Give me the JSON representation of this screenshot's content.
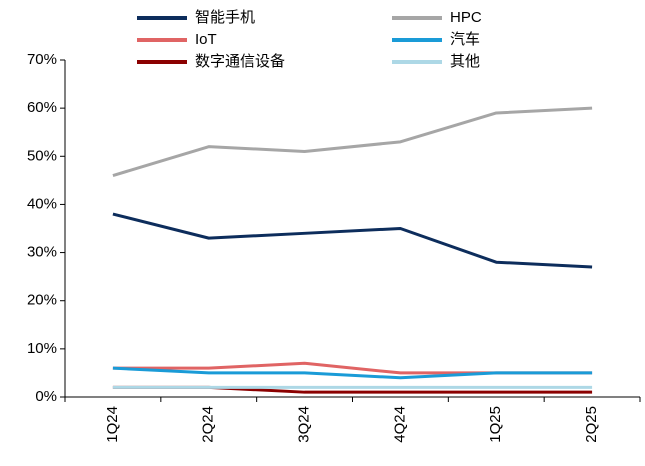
{
  "chart_data": {
    "type": "line",
    "categories": [
      "1Q24",
      "2Q24",
      "3Q24",
      "4Q24",
      "1Q25",
      "2Q25"
    ],
    "series": [
      {
        "name": "智能手机",
        "color": "#0d2d5c",
        "values": [
          38,
          33,
          34,
          35,
          28,
          27
        ]
      },
      {
        "name": "HPC",
        "color": "#a6a6a6",
        "values": [
          46,
          52,
          51,
          53,
          59,
          60
        ]
      },
      {
        "name": "IoT",
        "color": "#e06464",
        "values": [
          6,
          6,
          7,
          5,
          5,
          5
        ]
      },
      {
        "name": "汽车",
        "color": "#1a9bd7",
        "values": [
          6,
          5,
          5,
          4,
          5,
          5
        ]
      },
      {
        "name": "数字通信设备",
        "color": "#8b0000",
        "values": [
          2,
          2,
          1,
          1,
          1,
          1
        ]
      },
      {
        "name": "其他",
        "color": "#add8e6",
        "values": [
          2,
          2,
          2,
          2,
          2,
          2
        ]
      }
    ],
    "ylim": [
      0,
      70
    ],
    "yticks": [
      {
        "value": 0,
        "label": "0%"
      },
      {
        "value": 10,
        "label": "10%"
      },
      {
        "value": 20,
        "label": "20%"
      },
      {
        "value": 30,
        "label": "30%"
      },
      {
        "value": 40,
        "label": "40%"
      },
      {
        "value": 50,
        "label": "50%"
      },
      {
        "value": 60,
        "label": "60%"
      },
      {
        "value": 70,
        "label": "70%"
      }
    ],
    "grid": false,
    "legend": "top"
  }
}
